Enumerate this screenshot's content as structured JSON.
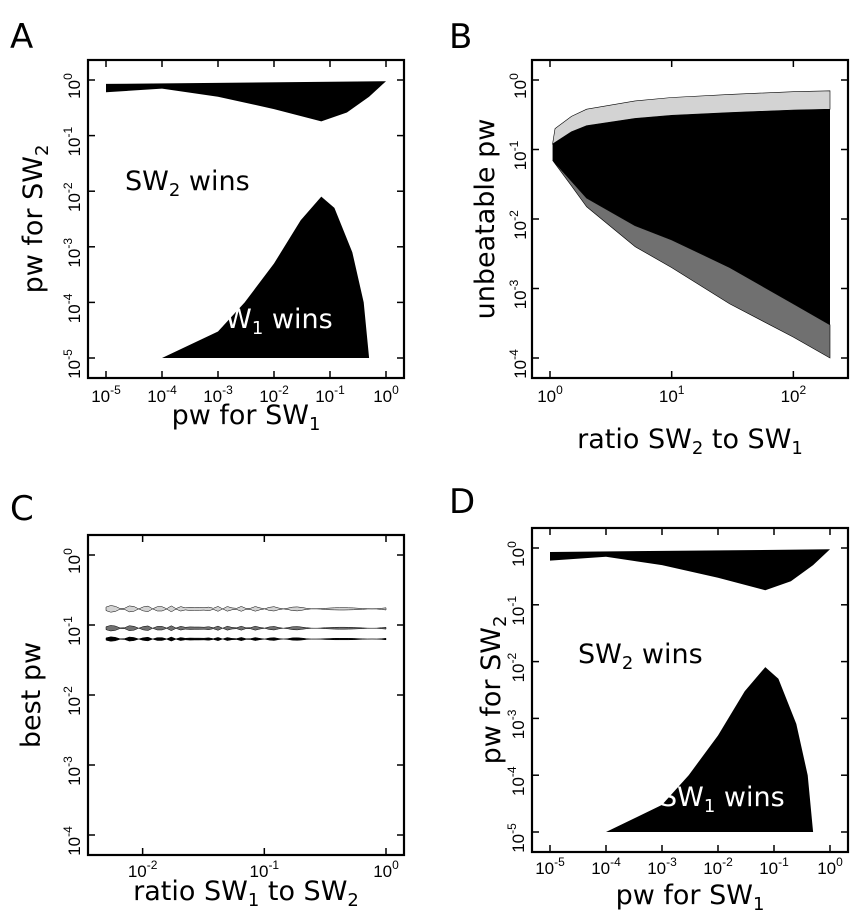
{
  "chart_data": [
    {
      "panel": "A",
      "type": "area",
      "xscale": "log",
      "yscale": "log",
      "xlim": [
        1e-05,
        1
      ],
      "ylim": [
        1e-05,
        1
      ],
      "xticks": [
        "10-5",
        "10-4",
        "10-3",
        "10-2",
        "10-1",
        "100"
      ],
      "yticks": [
        "10-5",
        "10-4",
        "10-3",
        "10-2",
        "10-1",
        "100"
      ],
      "xlabel": {
        "main": "pw for SW",
        "sub": "1"
      },
      "ylabel": {
        "main": "pw for SW",
        "sub": "2"
      },
      "annotations": [
        {
          "main": "SW",
          "sub": "2",
          "rest": " wins",
          "color": "#000000"
        },
        {
          "main": "SW",
          "sub": "1",
          "rest": " wins",
          "color": "#ffffff"
        }
      ],
      "regions": [
        {
          "name": "top band",
          "color": "#000000",
          "upper": [
            [
              1e-05,
              0.85
            ],
            [
              1,
              0.95
            ]
          ],
          "lower": [
            [
              1,
              0.95
            ],
            [
              0.5,
              0.5
            ],
            [
              0.2,
              0.26
            ],
            [
              0.07,
              0.18
            ],
            [
              0.01,
              0.3
            ],
            [
              0.001,
              0.5
            ],
            [
              0.0001,
              0.7
            ],
            [
              1e-05,
              0.6
            ]
          ]
        },
        {
          "name": "SW1 wins",
          "color": "#000000",
          "outline": [
            [
              0.0001,
              1e-05
            ],
            [
              0.001,
              3e-05
            ],
            [
              0.003,
              0.0001
            ],
            [
              0.01,
              0.0005
            ],
            [
              0.03,
              0.003
            ],
            [
              0.07,
              0.008
            ],
            [
              0.12,
              0.005
            ],
            [
              0.25,
              0.0008
            ],
            [
              0.4,
              0.0001
            ],
            [
              0.5,
              1e-05
            ]
          ]
        }
      ]
    },
    {
      "panel": "B",
      "type": "area",
      "xscale": "log",
      "yscale": "log",
      "xlim": [
        1,
        200
      ],
      "ylim": [
        0.0001,
        1
      ],
      "xticks": [
        "100",
        "101",
        "102"
      ],
      "yticks": [
        "10-4",
        "10-3",
        "10-2",
        "10-1",
        "100"
      ],
      "xlabel": {
        "main": "ratio SW",
        "sub": "2",
        "rest": " to SW",
        "sub2": "1"
      },
      "ylabel": {
        "main": "unbeatable pw"
      },
      "bands": [
        {
          "color": "#d3d3d3",
          "x": [
            1.1,
            1.5,
            2,
            5,
            10,
            30,
            100,
            200
          ],
          "upper": [
            0.2,
            0.3,
            0.38,
            0.5,
            0.56,
            0.62,
            0.68,
            0.7
          ]
        },
        {
          "color": "#000000",
          "x": [
            1.05,
            1.5,
            2,
            5,
            10,
            30,
            100,
            200
          ],
          "upper": [
            0.12,
            0.18,
            0.22,
            0.28,
            0.31,
            0.34,
            0.37,
            0.38
          ],
          "lower": [
            0.07,
            0.035,
            0.02,
            0.008,
            0.005,
            0.002,
            0.0006,
            0.0003
          ]
        },
        {
          "color": "#707070",
          "x": [
            1.05,
            1.5,
            2,
            5,
            10,
            30,
            100,
            200
          ],
          "lower": [
            0.07,
            0.03,
            0.015,
            0.004,
            0.002,
            0.0006,
            0.0002,
            0.0001
          ]
        }
      ]
    },
    {
      "panel": "C",
      "type": "line",
      "xscale": "log",
      "yscale": "log",
      "xlim": [
        0.005,
        1
      ],
      "ylim": [
        0.0001,
        1
      ],
      "xticks": [
        "10-2",
        "10-1",
        "100"
      ],
      "yticks": [
        "10-4",
        "10-3",
        "10-2",
        "10-1",
        "100"
      ],
      "xlabel": {
        "main": "ratio SW",
        "sub": "1",
        "rest": " to SW",
        "sub2": "2"
      },
      "ylabel": {
        "main": "best pw"
      },
      "series": [
        {
          "color": "#d3d3d3",
          "value": 0.17,
          "width": 0.12
        },
        {
          "color": "#707070",
          "value": 0.09,
          "width": 0.1
        },
        {
          "color": "#000000",
          "value": 0.063,
          "width": 0.08
        }
      ],
      "x_range": [
        0.005,
        1
      ]
    },
    {
      "panel": "D",
      "type": "area",
      "xscale": "log",
      "yscale": "log",
      "xlim": [
        1e-05,
        1
      ],
      "ylim": [
        1e-05,
        1
      ],
      "xticks": [
        "10-5",
        "10-4",
        "10-3",
        "10-2",
        "10-1",
        "100"
      ],
      "yticks": [
        "10-5",
        "10-4",
        "10-3",
        "10-2",
        "10-1",
        "100"
      ],
      "xlabel": {
        "main": "pw for SW",
        "sub": "1"
      },
      "ylabel": {
        "main": "pw for SW",
        "sub": "2"
      },
      "annotations": [
        {
          "main": "SW",
          "sub": "2",
          "rest": " wins",
          "color": "#000000"
        },
        {
          "main": "SW",
          "sub": "1",
          "rest": " wins",
          "color": "#ffffff"
        }
      ],
      "regions": [
        {
          "name": "top band",
          "color": "#000000",
          "upper": [
            [
              1e-05,
              0.85
            ],
            [
              1,
              0.95
            ]
          ],
          "lower": [
            [
              1,
              0.95
            ],
            [
              0.5,
              0.5
            ],
            [
              0.2,
              0.26
            ],
            [
              0.07,
              0.18
            ],
            [
              0.01,
              0.3
            ],
            [
              0.001,
              0.5
            ],
            [
              0.0001,
              0.7
            ],
            [
              1e-05,
              0.6
            ]
          ]
        },
        {
          "name": "SW1 wins",
          "color": "#000000",
          "outline": [
            [
              0.0001,
              1e-05
            ],
            [
              0.001,
              3e-05
            ],
            [
              0.003,
              0.0001
            ],
            [
              0.01,
              0.0005
            ],
            [
              0.03,
              0.003
            ],
            [
              0.07,
              0.008
            ],
            [
              0.12,
              0.005
            ],
            [
              0.25,
              0.0008
            ],
            [
              0.4,
              0.0001
            ],
            [
              0.5,
              1e-05
            ]
          ]
        }
      ]
    }
  ],
  "panel_letters": [
    "A",
    "B",
    "C",
    "D"
  ]
}
